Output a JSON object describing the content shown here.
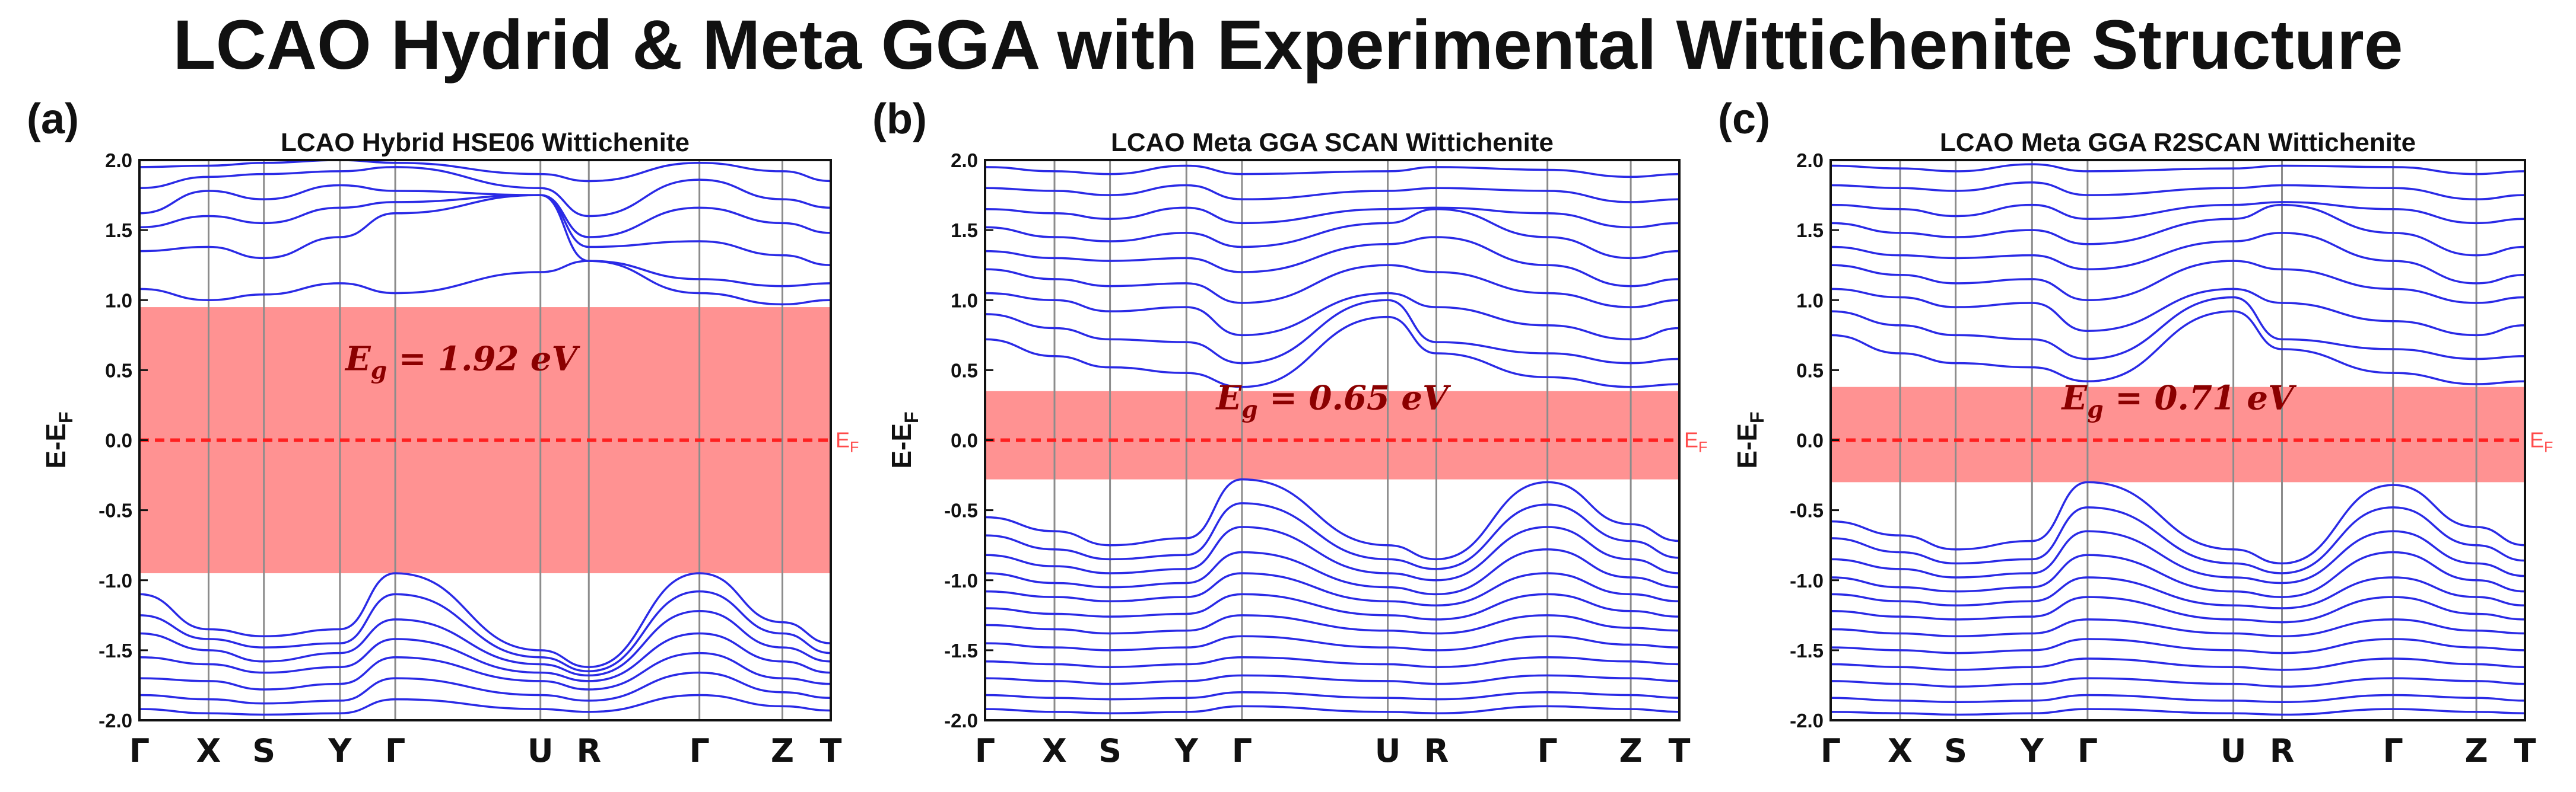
{
  "title": "LCAO Hydrid & Meta GGA with Experimental Wittichenite Structure",
  "colors": {
    "band": "#2a2ae6",
    "gap_fill": "#ff8c8c",
    "fermi": "#ff2020",
    "gap_text": "#8b0000",
    "grid": "#8c8c8c",
    "axis": "#111111"
  },
  "chart_data": [
    {
      "type": "line",
      "panel_label": "(a)",
      "title": "LCAO Hybrid HSE06 Wittichenite",
      "ylabel": "E-E",
      "ylabel_sub": "F",
      "ylim": [
        -2.0,
        2.0
      ],
      "yticks": [
        "2.0",
        "1.5",
        "1.0",
        "0.5",
        "0.0",
        "-0.5",
        "-1.0",
        "-1.5",
        "-2.0"
      ],
      "xticks": [
        "Γ",
        "X",
        "S",
        "Y",
        "Γ",
        "U",
        "R",
        "Γ",
        "Z",
        "T"
      ],
      "fermi_label": "E",
      "fermi_sub": "F",
      "gap_label_prefix": "E",
      "gap_label_sub": "g",
      "gap_label_value": " = 1.92 eV",
      "gap_range": [
        -0.95,
        0.95
      ],
      "series": [
        {
          "name": "CB1",
          "values": [
            1.08,
            1.0,
            1.04,
            1.12,
            1.05,
            1.2,
            1.28,
            1.05,
            0.97,
            1.0
          ]
        },
        {
          "name": "CB2",
          "values": [
            1.35,
            1.38,
            1.3,
            1.45,
            1.62,
            1.75,
            1.28,
            1.15,
            1.1,
            1.12
          ]
        },
        {
          "name": "CB3",
          "values": [
            1.52,
            1.6,
            1.55,
            1.66,
            1.7,
            1.75,
            1.38,
            1.42,
            1.32,
            1.25
          ]
        },
        {
          "name": "CB4",
          "values": [
            1.62,
            1.78,
            1.72,
            1.82,
            1.78,
            1.75,
            1.45,
            1.66,
            1.55,
            1.48
          ]
        },
        {
          "name": "CB5",
          "values": [
            1.8,
            1.88,
            1.9,
            1.92,
            1.95,
            1.8,
            1.6,
            1.86,
            1.72,
            1.66
          ]
        },
        {
          "name": "CB6",
          "values": [
            1.95,
            1.96,
            1.98,
            2.0,
            1.98,
            1.9,
            1.85,
            1.98,
            1.92,
            1.85
          ]
        },
        {
          "name": "VB1",
          "values": [
            -1.1,
            -1.35,
            -1.4,
            -1.35,
            -0.95,
            -1.5,
            -1.62,
            -0.95,
            -1.3,
            -1.45
          ]
        },
        {
          "name": "VB2",
          "values": [
            -1.25,
            -1.42,
            -1.48,
            -1.45,
            -1.1,
            -1.55,
            -1.65,
            -1.08,
            -1.38,
            -1.52
          ]
        },
        {
          "name": "VB3",
          "values": [
            -1.38,
            -1.5,
            -1.58,
            -1.52,
            -1.28,
            -1.6,
            -1.68,
            -1.22,
            -1.48,
            -1.58
          ]
        },
        {
          "name": "VB4",
          "values": [
            -1.55,
            -1.6,
            -1.66,
            -1.62,
            -1.42,
            -1.66,
            -1.72,
            -1.38,
            -1.58,
            -1.66
          ]
        },
        {
          "name": "VB5",
          "values": [
            -1.7,
            -1.72,
            -1.78,
            -1.74,
            -1.55,
            -1.72,
            -1.78,
            -1.52,
            -1.7,
            -1.74
          ]
        },
        {
          "name": "VB6",
          "values": [
            -1.82,
            -1.85,
            -1.88,
            -1.86,
            -1.7,
            -1.82,
            -1.86,
            -1.66,
            -1.8,
            -1.84
          ]
        },
        {
          "name": "VB7",
          "values": [
            -1.92,
            -1.95,
            -1.96,
            -1.95,
            -1.85,
            -1.92,
            -1.94,
            -1.82,
            -1.9,
            -1.93
          ]
        }
      ]
    },
    {
      "type": "line",
      "panel_label": "(b)",
      "title": "LCAO Meta GGA SCAN Wittichenite",
      "ylabel": "E-E",
      "ylabel_sub": "F",
      "ylim": [
        -2.0,
        2.0
      ],
      "yticks": [
        "2.0",
        "1.5",
        "1.0",
        "0.5",
        "0.0",
        "-0.5",
        "-1.0",
        "-1.5",
        "-2.0"
      ],
      "xticks": [
        "Γ",
        "X",
        "S",
        "Y",
        "Γ",
        "U",
        "R",
        "Γ",
        "Z",
        "T"
      ],
      "fermi_label": "E",
      "fermi_sub": "F",
      "gap_label_prefix": "E",
      "gap_label_sub": "g",
      "gap_label_value": " = 0.65 eV",
      "gap_range": [
        -0.28,
        0.35
      ],
      "series": [
        {
          "name": "CB1",
          "values": [
            0.72,
            0.6,
            0.52,
            0.48,
            0.38,
            0.88,
            0.62,
            0.45,
            0.38,
            0.4
          ]
        },
        {
          "name": "CB2",
          "values": [
            0.9,
            0.8,
            0.72,
            0.7,
            0.55,
            1.0,
            0.7,
            0.62,
            0.55,
            0.58
          ]
        },
        {
          "name": "CB3",
          "values": [
            1.05,
            1.0,
            0.92,
            0.95,
            0.75,
            1.05,
            0.95,
            0.82,
            0.72,
            0.8
          ]
        },
        {
          "name": "CB4",
          "values": [
            1.22,
            1.15,
            1.1,
            1.12,
            0.98,
            1.25,
            1.2,
            1.05,
            0.95,
            1.0
          ]
        },
        {
          "name": "CB5",
          "values": [
            1.35,
            1.3,
            1.28,
            1.3,
            1.2,
            1.4,
            1.45,
            1.25,
            1.1,
            1.15
          ]
        },
        {
          "name": "CB6",
          "values": [
            1.52,
            1.45,
            1.42,
            1.48,
            1.38,
            1.55,
            1.65,
            1.45,
            1.3,
            1.35
          ]
        },
        {
          "name": "CB7",
          "values": [
            1.65,
            1.62,
            1.58,
            1.66,
            1.55,
            1.65,
            1.66,
            1.62,
            1.52,
            1.55
          ]
        },
        {
          "name": "CB8",
          "values": [
            1.8,
            1.78,
            1.75,
            1.82,
            1.72,
            1.78,
            1.8,
            1.78,
            1.7,
            1.72
          ]
        },
        {
          "name": "CB9",
          "values": [
            1.95,
            1.92,
            1.9,
            1.96,
            1.9,
            1.92,
            1.95,
            1.93,
            1.88,
            1.9
          ]
        },
        {
          "name": "VB1",
          "values": [
            -0.55,
            -0.65,
            -0.75,
            -0.7,
            -0.28,
            -0.75,
            -0.85,
            -0.3,
            -0.6,
            -0.72
          ]
        },
        {
          "name": "VB2",
          "values": [
            -0.68,
            -0.78,
            -0.85,
            -0.82,
            -0.45,
            -0.85,
            -0.92,
            -0.46,
            -0.72,
            -0.84
          ]
        },
        {
          "name": "VB3",
          "values": [
            -0.82,
            -0.9,
            -0.95,
            -0.92,
            -0.62,
            -0.95,
            -1.0,
            -0.62,
            -0.85,
            -0.95
          ]
        },
        {
          "name": "VB4",
          "values": [
            -0.95,
            -1.02,
            -1.05,
            -1.02,
            -0.8,
            -1.05,
            -1.1,
            -0.78,
            -0.98,
            -1.05
          ]
        },
        {
          "name": "VB5",
          "values": [
            -1.08,
            -1.12,
            -1.15,
            -1.12,
            -0.95,
            -1.15,
            -1.18,
            -0.95,
            -1.1,
            -1.15
          ]
        },
        {
          "name": "VB6",
          "values": [
            -1.2,
            -1.24,
            -1.26,
            -1.24,
            -1.1,
            -1.25,
            -1.28,
            -1.1,
            -1.22,
            -1.26
          ]
        },
        {
          "name": "VB7",
          "values": [
            -1.32,
            -1.35,
            -1.38,
            -1.36,
            -1.25,
            -1.36,
            -1.38,
            -1.25,
            -1.34,
            -1.36
          ]
        },
        {
          "name": "VB8",
          "values": [
            -1.45,
            -1.48,
            -1.5,
            -1.48,
            -1.4,
            -1.48,
            -1.5,
            -1.4,
            -1.46,
            -1.48
          ]
        },
        {
          "name": "VB9",
          "values": [
            -1.58,
            -1.6,
            -1.62,
            -1.6,
            -1.55,
            -1.6,
            -1.62,
            -1.55,
            -1.58,
            -1.6
          ]
        },
        {
          "name": "VB10",
          "values": [
            -1.7,
            -1.72,
            -1.74,
            -1.72,
            -1.68,
            -1.72,
            -1.74,
            -1.68,
            -1.7,
            -1.72
          ]
        },
        {
          "name": "VB11",
          "values": [
            -1.82,
            -1.84,
            -1.85,
            -1.84,
            -1.8,
            -1.84,
            -1.85,
            -1.8,
            -1.82,
            -1.84
          ]
        },
        {
          "name": "VB12",
          "values": [
            -1.92,
            -1.94,
            -1.95,
            -1.94,
            -1.9,
            -1.94,
            -1.95,
            -1.9,
            -1.92,
            -1.94
          ]
        }
      ]
    },
    {
      "type": "line",
      "panel_label": "(c)",
      "title": "LCAO Meta GGA R2SCAN Wittichenite",
      "ylabel": "E-E",
      "ylabel_sub": "F",
      "ylim": [
        -2.0,
        2.0
      ],
      "yticks": [
        "2.0",
        "1.5",
        "1.0",
        "0.5",
        "0.0",
        "-0.5",
        "-1.0",
        "-1.5",
        "-2.0"
      ],
      "xticks": [
        "Γ",
        "X",
        "S",
        "Y",
        "Γ",
        "U",
        "R",
        "Γ",
        "Z",
        "T"
      ],
      "fermi_label": "E",
      "fermi_sub": "F",
      "gap_label_prefix": "E",
      "gap_label_sub": "g",
      "gap_label_value": " = 0.71 eV",
      "gap_range": [
        -0.3,
        0.38
      ],
      "series": [
        {
          "name": "CB1",
          "values": [
            0.75,
            0.62,
            0.55,
            0.52,
            0.42,
            0.92,
            0.65,
            0.48,
            0.4,
            0.42
          ]
        },
        {
          "name": "CB2",
          "values": [
            0.92,
            0.82,
            0.75,
            0.72,
            0.58,
            1.02,
            0.72,
            0.65,
            0.58,
            0.6
          ]
        },
        {
          "name": "CB3",
          "values": [
            1.08,
            1.02,
            0.95,
            0.98,
            0.78,
            1.08,
            0.98,
            0.85,
            0.75,
            0.82
          ]
        },
        {
          "name": "CB4",
          "values": [
            1.25,
            1.18,
            1.12,
            1.15,
            1.0,
            1.28,
            1.22,
            1.08,
            0.98,
            1.02
          ]
        },
        {
          "name": "CB5",
          "values": [
            1.38,
            1.32,
            1.3,
            1.32,
            1.22,
            1.42,
            1.48,
            1.28,
            1.12,
            1.18
          ]
        },
        {
          "name": "CB6",
          "values": [
            1.55,
            1.48,
            1.45,
            1.5,
            1.4,
            1.58,
            1.68,
            1.48,
            1.32,
            1.38
          ]
        },
        {
          "name": "CB7",
          "values": [
            1.68,
            1.65,
            1.6,
            1.68,
            1.58,
            1.68,
            1.7,
            1.65,
            1.55,
            1.58
          ]
        },
        {
          "name": "CB8",
          "values": [
            1.82,
            1.8,
            1.78,
            1.84,
            1.75,
            1.8,
            1.82,
            1.8,
            1.72,
            1.75
          ]
        },
        {
          "name": "CB9",
          "values": [
            1.96,
            1.94,
            1.92,
            1.97,
            1.92,
            1.94,
            1.96,
            1.95,
            1.9,
            1.92
          ]
        },
        {
          "name": "VB1",
          "values": [
            -0.58,
            -0.68,
            -0.78,
            -0.72,
            -0.3,
            -0.78,
            -0.88,
            -0.32,
            -0.62,
            -0.75
          ]
        },
        {
          "name": "VB2",
          "values": [
            -0.7,
            -0.8,
            -0.88,
            -0.85,
            -0.48,
            -0.88,
            -0.95,
            -0.48,
            -0.75,
            -0.86
          ]
        },
        {
          "name": "VB3",
          "values": [
            -0.85,
            -0.92,
            -0.98,
            -0.95,
            -0.65,
            -0.98,
            -1.02,
            -0.65,
            -0.88,
            -0.97
          ]
        },
        {
          "name": "VB4",
          "values": [
            -0.98,
            -1.05,
            -1.08,
            -1.05,
            -0.82,
            -1.08,
            -1.12,
            -0.8,
            -1.0,
            -1.08
          ]
        },
        {
          "name": "VB5",
          "values": [
            -1.1,
            -1.15,
            -1.18,
            -1.15,
            -0.98,
            -1.18,
            -1.2,
            -0.98,
            -1.12,
            -1.18
          ]
        },
        {
          "name": "VB6",
          "values": [
            -1.22,
            -1.26,
            -1.28,
            -1.26,
            -1.12,
            -1.28,
            -1.3,
            -1.12,
            -1.24,
            -1.28
          ]
        },
        {
          "name": "VB7",
          "values": [
            -1.35,
            -1.38,
            -1.4,
            -1.38,
            -1.28,
            -1.38,
            -1.4,
            -1.28,
            -1.36,
            -1.38
          ]
        },
        {
          "name": "VB8",
          "values": [
            -1.48,
            -1.5,
            -1.52,
            -1.5,
            -1.42,
            -1.5,
            -1.52,
            -1.42,
            -1.48,
            -1.5
          ]
        },
        {
          "name": "VB9",
          "values": [
            -1.6,
            -1.62,
            -1.64,
            -1.62,
            -1.56,
            -1.62,
            -1.64,
            -1.56,
            -1.6,
            -1.62
          ]
        },
        {
          "name": "VB10",
          "values": [
            -1.72,
            -1.74,
            -1.76,
            -1.74,
            -1.7,
            -1.74,
            -1.76,
            -1.7,
            -1.72,
            -1.74
          ]
        },
        {
          "name": "VB11",
          "values": [
            -1.84,
            -1.86,
            -1.87,
            -1.86,
            -1.82,
            -1.86,
            -1.87,
            -1.82,
            -1.84,
            -1.86
          ]
        },
        {
          "name": "VB12",
          "values": [
            -1.94,
            -1.95,
            -1.96,
            -1.95,
            -1.92,
            -1.95,
            -1.96,
            -1.92,
            -1.94,
            -1.95
          ]
        }
      ]
    }
  ]
}
